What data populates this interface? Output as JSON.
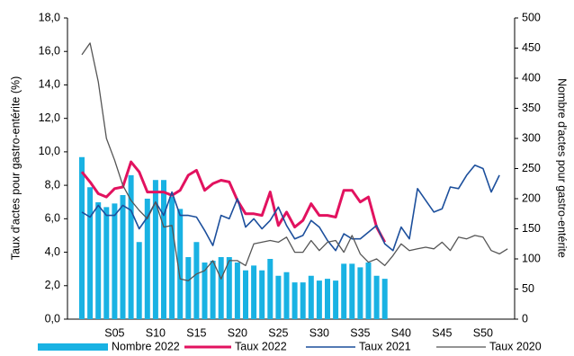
{
  "chart_data": {
    "type": "combo",
    "y_label": "Taux d'actes pour gastro-entérite (%)",
    "y2_label": "Nombre d'actes pour gastro-entérite",
    "categories": [
      null,
      null,
      null,
      null,
      "S05",
      null,
      null,
      null,
      null,
      "S10",
      null,
      null,
      null,
      null,
      "S15",
      null,
      null,
      null,
      null,
      "S20",
      null,
      null,
      null,
      null,
      "S25",
      null,
      null,
      null,
      null,
      "S30",
      null,
      null,
      null,
      null,
      "S35",
      null,
      null,
      null,
      null,
      "S40",
      null,
      null,
      null,
      null,
      "S45",
      null,
      null,
      null,
      null,
      "S50",
      null,
      null,
      null
    ],
    "ylim": [
      0,
      18
    ],
    "yticks": [
      {
        "value": 0,
        "label": "0,0"
      },
      {
        "value": 2,
        "label": "2,0"
      },
      {
        "value": 4,
        "label": "4,0"
      },
      {
        "value": 6,
        "label": "6,0"
      },
      {
        "value": 8,
        "label": "8,0"
      },
      {
        "value": 10,
        "label": "10,0"
      },
      {
        "value": 12,
        "label": "12,0"
      },
      {
        "value": 14,
        "label": "14,0"
      },
      {
        "value": 16,
        "label": "16,0"
      },
      {
        "value": 18,
        "label": "18,0"
      }
    ],
    "y2lim": [
      0,
      500
    ],
    "y2ticks": [
      0,
      50,
      100,
      150,
      200,
      250,
      300,
      350,
      400,
      450,
      500
    ],
    "series": [
      {
        "name": "Nombre 2022",
        "type": "bar",
        "axis": "y2",
        "color": "#19b2e3",
        "values": [
          269,
          219,
          194,
          186,
          192,
          206,
          239,
          128,
          200,
          231,
          231,
          203,
          183,
          103,
          128,
          94,
          97,
          103,
          103,
          94,
          81,
          89,
          81,
          100,
          72,
          78,
          61,
          61,
          72,
          64,
          67,
          64,
          92,
          92,
          86,
          94,
          72,
          67,
          null,
          null,
          null,
          null,
          null,
          null,
          null,
          null,
          null,
          null,
          null,
          null,
          null,
          null,
          null
        ]
      },
      {
        "name": "Taux 2022",
        "type": "line",
        "color": "#e2125f",
        "width": 3,
        "values": [
          8.8,
          8.2,
          7.5,
          7.3,
          7.8,
          7.9,
          9.4,
          8.8,
          7.6,
          7.6,
          7.6,
          7.4,
          7.7,
          8.6,
          8.9,
          7.7,
          8.1,
          8.3,
          8.2,
          7.1,
          6.3,
          6.3,
          6.2,
          7.6,
          5.6,
          6.4,
          5.5,
          5.9,
          6.9,
          6.2,
          6.2,
          6.1,
          7.7,
          7.7,
          7.0,
          7.3,
          5.5,
          4.6,
          null,
          null,
          null,
          null,
          null,
          null,
          null,
          null,
          null,
          null,
          null,
          null,
          null,
          null,
          null
        ]
      },
      {
        "name": "Taux 2021",
        "type": "line",
        "color": "#1c4f9c",
        "width": 1.6,
        "values": [
          6.4,
          6.1,
          6.8,
          6.2,
          6.2,
          6.8,
          6.5,
          5.4,
          6.1,
          7.0,
          6.2,
          7.6,
          6.2,
          6.2,
          6.1,
          5.3,
          4.4,
          6.2,
          6.0,
          7.2,
          5.5,
          6.0,
          5.4,
          5.9,
          6.7,
          5.6,
          4.8,
          5.0,
          5.9,
          5.5,
          4.7,
          4.1,
          5.1,
          4.8,
          4.8,
          5.2,
          5.6,
          4.5,
          4.1,
          5.5,
          4.8,
          7.8,
          7.1,
          6.4,
          6.6,
          7.9,
          7.8,
          8.6,
          9.2,
          9.0,
          7.6,
          8.6,
          null
        ]
      },
      {
        "name": "Taux 2020",
        "type": "line",
        "color": "#555555",
        "width": 1.3,
        "values": [
          15.8,
          16.5,
          14.2,
          10.8,
          9.5,
          8.0,
          7.1,
          6.5,
          6.0,
          7.0,
          5.5,
          5.6,
          2.4,
          2.3,
          2.7,
          2.9,
          3.5,
          2.4,
          3.5,
          3.5,
          3.2,
          4.5,
          4.6,
          4.7,
          4.6,
          4.9,
          4.0,
          4.0,
          4.7,
          4.1,
          4.6,
          4.7,
          4.0,
          5.0,
          3.9,
          3.4,
          3.6,
          3.2,
          3.8,
          4.5,
          4.1,
          4.2,
          4.3,
          4.2,
          4.6,
          4.1,
          4.9,
          4.8,
          5.0,
          4.9,
          4.1,
          3.9,
          4.2
        ]
      }
    ]
  }
}
